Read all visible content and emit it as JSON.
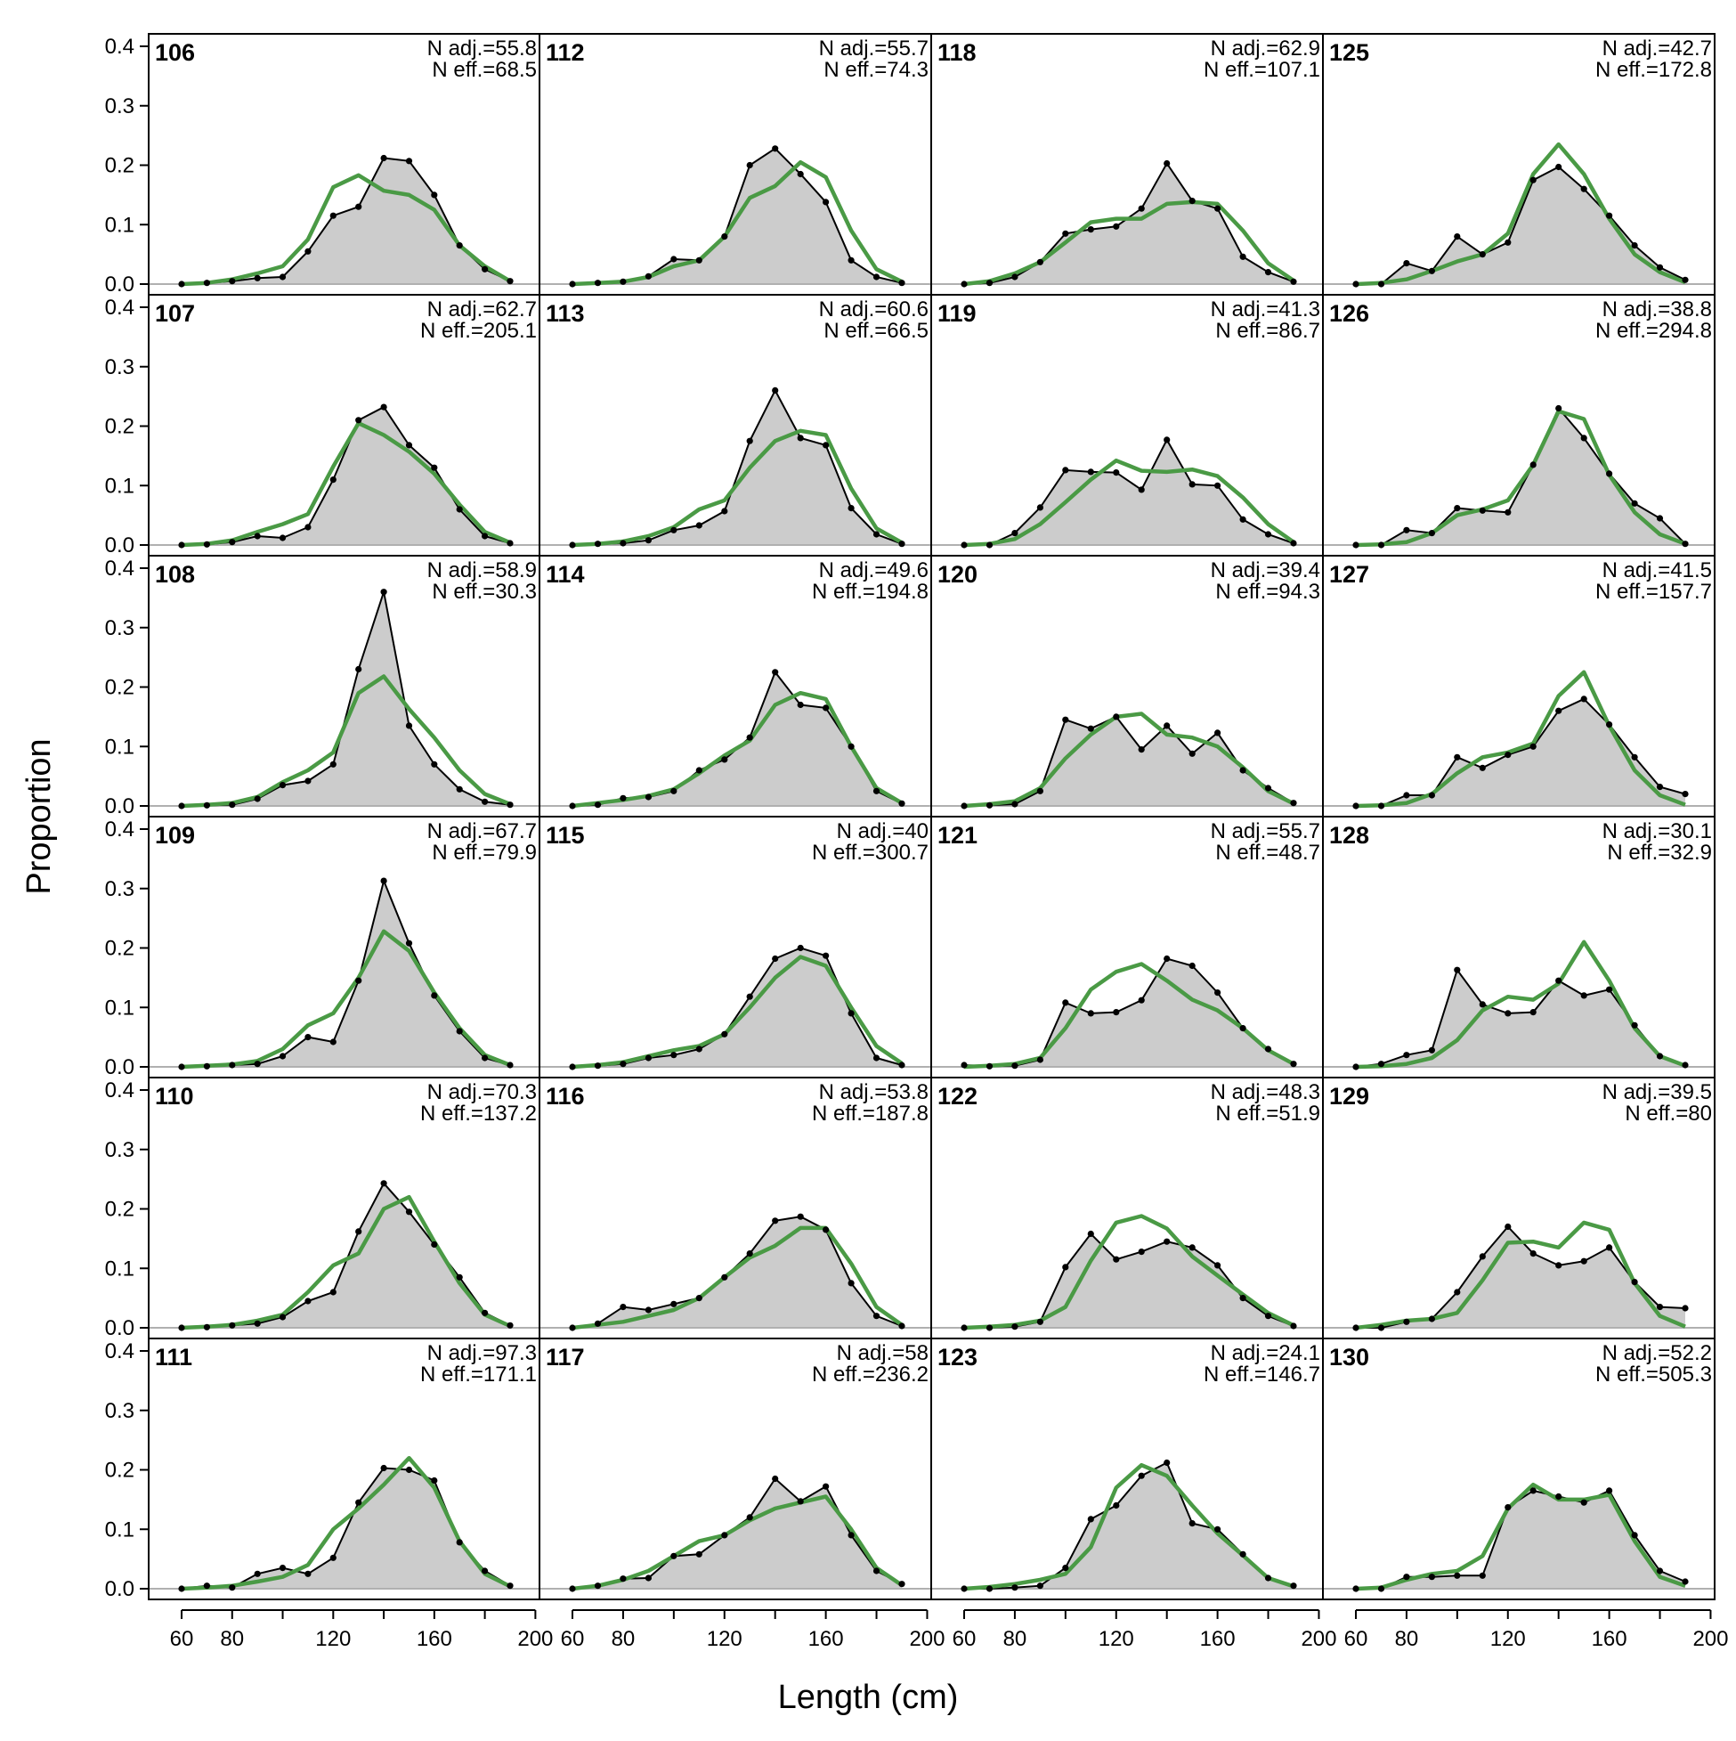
{
  "chart_data": {
    "type": "area",
    "ylabel": "Proportion",
    "xlabel": "Length (cm)",
    "x": [
      60,
      70,
      80,
      90,
      100,
      110,
      120,
      130,
      140,
      150,
      160,
      170,
      180,
      190
    ],
    "xlim": [
      50,
      200
    ],
    "ylim": [
      0,
      0.42
    ],
    "xticks": [
      60,
      80,
      120,
      160,
      200
    ],
    "yticks": [
      0.0,
      0.1,
      0.2,
      0.3,
      0.4
    ],
    "ytick_labels": [
      "0.0",
      "0.1",
      "0.2",
      "0.3",
      "0.4"
    ],
    "colors": {
      "observed_fill": "#cccccc",
      "observed_line": "#000000",
      "expected_line": "#4a9a45",
      "zero_line": "#b0b0b0"
    },
    "panels": [
      {
        "label": "106",
        "n_adj": "N adj.=55.8",
        "n_eff": "N eff.=68.5",
        "obs": [
          0.0,
          0.002,
          0.005,
          0.01,
          0.012,
          0.055,
          0.115,
          0.13,
          0.212,
          0.207,
          0.15,
          0.065,
          0.025,
          0.005
        ],
        "exp": [
          0.0,
          0.002,
          0.008,
          0.018,
          0.03,
          0.075,
          0.163,
          0.183,
          0.157,
          0.15,
          0.125,
          0.065,
          0.03,
          0.005
        ]
      },
      {
        "label": "107",
        "n_adj": "N adj.=62.7",
        "n_eff": "N eff.=205.1",
        "obs": [
          0.0,
          0.001,
          0.005,
          0.015,
          0.012,
          0.03,
          0.11,
          0.21,
          0.232,
          0.168,
          0.13,
          0.06,
          0.015,
          0.003
        ],
        "exp": [
          0.0,
          0.002,
          0.008,
          0.022,
          0.035,
          0.052,
          0.132,
          0.205,
          0.185,
          0.157,
          0.12,
          0.068,
          0.022,
          0.004
        ]
      },
      {
        "label": "108",
        "n_adj": "N adj.=58.9",
        "n_eff": "N eff.=30.3",
        "obs": [
          0.0,
          0.001,
          0.002,
          0.012,
          0.035,
          0.042,
          0.07,
          0.23,
          0.36,
          0.135,
          0.07,
          0.028,
          0.007,
          0.002
        ],
        "exp": [
          0.0,
          0.002,
          0.005,
          0.015,
          0.04,
          0.06,
          0.09,
          0.19,
          0.218,
          0.163,
          0.115,
          0.06,
          0.02,
          0.003
        ]
      },
      {
        "label": "109",
        "n_adj": "N adj.=67.7",
        "n_eff": "N eff.=79.9",
        "obs": [
          0.0,
          0.001,
          0.003,
          0.005,
          0.018,
          0.05,
          0.042,
          0.145,
          0.313,
          0.208,
          0.12,
          0.06,
          0.015,
          0.003
        ],
        "exp": [
          0.0,
          0.002,
          0.004,
          0.01,
          0.03,
          0.07,
          0.09,
          0.15,
          0.228,
          0.195,
          0.125,
          0.065,
          0.02,
          0.003
        ]
      },
      {
        "label": "110",
        "n_adj": "N adj.=70.3",
        "n_eff": "N eff.=137.2",
        "obs": [
          0.0,
          0.001,
          0.004,
          0.007,
          0.018,
          0.045,
          0.06,
          0.162,
          0.243,
          0.195,
          0.14,
          0.085,
          0.025,
          0.004
        ],
        "exp": [
          0.0,
          0.002,
          0.005,
          0.012,
          0.022,
          0.06,
          0.105,
          0.125,
          0.2,
          0.22,
          0.145,
          0.075,
          0.022,
          0.003
        ]
      },
      {
        "label": "111",
        "n_adj": "N adj.=97.3",
        "n_eff": "N eff.=171.1",
        "obs": [
          0.0,
          0.005,
          0.002,
          0.025,
          0.035,
          0.025,
          0.052,
          0.145,
          0.203,
          0.2,
          0.182,
          0.078,
          0.03,
          0.005
        ],
        "exp": [
          0.0,
          0.002,
          0.005,
          0.012,
          0.02,
          0.04,
          0.1,
          0.135,
          0.175,
          0.22,
          0.17,
          0.08,
          0.025,
          0.004
        ]
      },
      {
        "label": "112",
        "n_adj": "N adj.=55.7",
        "n_eff": "N eff.=74.3",
        "obs": [
          0.0,
          0.002,
          0.004,
          0.013,
          0.042,
          0.04,
          0.08,
          0.2,
          0.228,
          0.185,
          0.138,
          0.04,
          0.012,
          0.002
        ],
        "exp": [
          0.0,
          0.002,
          0.004,
          0.012,
          0.03,
          0.04,
          0.08,
          0.145,
          0.165,
          0.205,
          0.18,
          0.09,
          0.025,
          0.004
        ]
      },
      {
        "label": "113",
        "n_adj": "N adj.=60.6",
        "n_eff": "N eff.=66.5",
        "obs": [
          0.0,
          0.002,
          0.003,
          0.008,
          0.025,
          0.033,
          0.057,
          0.175,
          0.26,
          0.18,
          0.168,
          0.062,
          0.018,
          0.002
        ],
        "exp": [
          0.0,
          0.002,
          0.006,
          0.015,
          0.03,
          0.06,
          0.075,
          0.13,
          0.175,
          0.192,
          0.185,
          0.095,
          0.028,
          0.004
        ]
      },
      {
        "label": "114",
        "n_adj": "N adj.=49.6",
        "n_eff": "N eff.=194.8",
        "obs": [
          0.0,
          0.002,
          0.013,
          0.015,
          0.025,
          0.06,
          0.078,
          0.115,
          0.225,
          0.17,
          0.165,
          0.1,
          0.025,
          0.004
        ],
        "exp": [
          0.0,
          0.005,
          0.01,
          0.017,
          0.028,
          0.055,
          0.085,
          0.11,
          0.17,
          0.19,
          0.18,
          0.1,
          0.03,
          0.005
        ]
      },
      {
        "label": "115",
        "n_adj": "N adj.=40",
        "n_eff": "N eff.=300.7",
        "obs": [
          0.0,
          0.002,
          0.005,
          0.015,
          0.02,
          0.03,
          0.055,
          0.118,
          0.182,
          0.2,
          0.187,
          0.09,
          0.015,
          0.003
        ],
        "exp": [
          0.0,
          0.003,
          0.008,
          0.018,
          0.028,
          0.035,
          0.055,
          0.1,
          0.15,
          0.185,
          0.17,
          0.1,
          0.035,
          0.006
        ]
      },
      {
        "label": "116",
        "n_adj": "N adj.=53.8",
        "n_eff": "N eff.=187.8",
        "obs": [
          0.0,
          0.007,
          0.035,
          0.03,
          0.04,
          0.05,
          0.085,
          0.125,
          0.18,
          0.187,
          0.165,
          0.075,
          0.02,
          0.003
        ],
        "exp": [
          0.0,
          0.005,
          0.01,
          0.02,
          0.03,
          0.05,
          0.085,
          0.118,
          0.138,
          0.168,
          0.168,
          0.108,
          0.035,
          0.005
        ]
      },
      {
        "label": "117",
        "n_adj": "N adj.=58",
        "n_eff": "N eff.=236.2",
        "obs": [
          0.0,
          0.005,
          0.017,
          0.018,
          0.055,
          0.058,
          0.09,
          0.12,
          0.185,
          0.147,
          0.172,
          0.09,
          0.03,
          0.008
        ],
        "exp": [
          0.0,
          0.005,
          0.015,
          0.03,
          0.055,
          0.08,
          0.09,
          0.115,
          0.135,
          0.145,
          0.155,
          0.1,
          0.035,
          0.006
        ]
      },
      {
        "label": "118",
        "n_adj": "N adj.=62.9",
        "n_eff": "N eff.=107.1",
        "obs": [
          0.0,
          0.002,
          0.012,
          0.037,
          0.085,
          0.092,
          0.097,
          0.127,
          0.203,
          0.14,
          0.127,
          0.046,
          0.02,
          0.004
        ],
        "exp": [
          0.0,
          0.005,
          0.018,
          0.037,
          0.07,
          0.104,
          0.11,
          0.11,
          0.135,
          0.138,
          0.135,
          0.09,
          0.035,
          0.006
        ]
      },
      {
        "label": "119",
        "n_adj": "N adj.=41.3",
        "n_eff": "N eff.=86.7",
        "obs": [
          0.0,
          0.0,
          0.02,
          0.063,
          0.126,
          0.123,
          0.122,
          0.093,
          0.177,
          0.102,
          0.1,
          0.043,
          0.018,
          0.003
        ],
        "exp": [
          0.0,
          0.002,
          0.01,
          0.035,
          0.072,
          0.11,
          0.142,
          0.125,
          0.123,
          0.127,
          0.116,
          0.08,
          0.035,
          0.005
        ]
      },
      {
        "label": "120",
        "n_adj": "N adj.=39.4",
        "n_eff": "N eff.=94.3",
        "obs": [
          0.0,
          0.001,
          0.003,
          0.025,
          0.145,
          0.13,
          0.15,
          0.095,
          0.135,
          0.088,
          0.123,
          0.06,
          0.03,
          0.005
        ],
        "exp": [
          0.0,
          0.003,
          0.008,
          0.03,
          0.08,
          0.12,
          0.15,
          0.155,
          0.12,
          0.115,
          0.1,
          0.065,
          0.025,
          0.004
        ]
      },
      {
        "label": "121",
        "n_adj": "N adj.=55.7",
        "n_eff": "N eff.=48.7",
        "obs": [
          0.003,
          0.001,
          0.002,
          0.012,
          0.108,
          0.09,
          0.092,
          0.112,
          0.182,
          0.17,
          0.125,
          0.065,
          0.03,
          0.005
        ],
        "exp": [
          0.0,
          0.002,
          0.005,
          0.015,
          0.065,
          0.13,
          0.16,
          0.173,
          0.145,
          0.113,
          0.095,
          0.065,
          0.028,
          0.005
        ]
      },
      {
        "label": "122",
        "n_adj": "N adj.=48.3",
        "n_eff": "N eff.=51.9",
        "obs": [
          0.0,
          0.0,
          0.002,
          0.01,
          0.102,
          0.158,
          0.115,
          0.128,
          0.145,
          0.135,
          0.105,
          0.05,
          0.02,
          0.003
        ],
        "exp": [
          0.0,
          0.002,
          0.005,
          0.012,
          0.035,
          0.113,
          0.177,
          0.188,
          0.167,
          0.12,
          0.088,
          0.056,
          0.025,
          0.004
        ]
      },
      {
        "label": "123",
        "n_adj": "N adj.=24.1",
        "n_eff": "N eff.=146.7",
        "obs": [
          0.0,
          0.0,
          0.002,
          0.005,
          0.035,
          0.117,
          0.14,
          0.19,
          0.212,
          0.11,
          0.1,
          0.058,
          0.018,
          0.005
        ],
        "exp": [
          0.0,
          0.003,
          0.008,
          0.015,
          0.025,
          0.07,
          0.17,
          0.208,
          0.19,
          0.14,
          0.093,
          0.056,
          0.018,
          0.004
        ]
      },
      {
        "label": "125",
        "n_adj": "N adj.=42.7",
        "n_eff": "N eff.=172.8",
        "obs": [
          0.0,
          0.0,
          0.035,
          0.022,
          0.08,
          0.05,
          0.07,
          0.175,
          0.197,
          0.16,
          0.115,
          0.065,
          0.028,
          0.007
        ],
        "exp": [
          0.0,
          0.002,
          0.008,
          0.022,
          0.038,
          0.05,
          0.085,
          0.185,
          0.235,
          0.185,
          0.11,
          0.05,
          0.02,
          0.003
        ]
      },
      {
        "label": "126",
        "n_adj": "N adj.=38.8",
        "n_eff": "N eff.=294.8",
        "obs": [
          0.0,
          0.0,
          0.025,
          0.02,
          0.062,
          0.058,
          0.055,
          0.135,
          0.23,
          0.18,
          0.12,
          0.07,
          0.045,
          0.002
        ],
        "exp": [
          0.0,
          0.001,
          0.005,
          0.02,
          0.05,
          0.06,
          0.075,
          0.135,
          0.225,
          0.212,
          0.118,
          0.055,
          0.018,
          0.002
        ]
      },
      {
        "label": "127",
        "n_adj": "N adj.=41.5",
        "n_eff": "N eff.=157.7",
        "obs": [
          0.0,
          0.0,
          0.018,
          0.018,
          0.082,
          0.064,
          0.086,
          0.1,
          0.16,
          0.18,
          0.137,
          0.082,
          0.032,
          0.02
        ],
        "exp": [
          0.0,
          0.001,
          0.005,
          0.02,
          0.055,
          0.082,
          0.09,
          0.105,
          0.185,
          0.225,
          0.135,
          0.06,
          0.018,
          0.002
        ]
      },
      {
        "label": "128",
        "n_adj": "N adj.=30.1",
        "n_eff": "N eff.=32.9",
        "obs": [
          0.0,
          0.005,
          0.02,
          0.028,
          0.163,
          0.105,
          0.09,
          0.092,
          0.145,
          0.12,
          0.13,
          0.07,
          0.018,
          0.003
        ],
        "exp": [
          0.0,
          0.001,
          0.005,
          0.015,
          0.045,
          0.095,
          0.118,
          0.113,
          0.14,
          0.21,
          0.145,
          0.065,
          0.018,
          0.002
        ]
      },
      {
        "label": "129",
        "n_adj": "N adj.=39.5",
        "n_eff": "N eff.=80",
        "obs": [
          0.0,
          0.0,
          0.01,
          0.015,
          0.06,
          0.12,
          0.17,
          0.125,
          0.105,
          0.112,
          0.135,
          0.077,
          0.035,
          0.033
        ],
        "exp": [
          0.0,
          0.005,
          0.012,
          0.015,
          0.025,
          0.08,
          0.143,
          0.145,
          0.135,
          0.177,
          0.165,
          0.075,
          0.02,
          0.002
        ]
      },
      {
        "label": "130",
        "n_adj": "N adj.=52.2",
        "n_eff": "N eff.=505.3",
        "obs": [
          0.0,
          0.0,
          0.02,
          0.02,
          0.022,
          0.022,
          0.137,
          0.165,
          0.155,
          0.145,
          0.165,
          0.09,
          0.03,
          0.012
        ],
        "exp": [
          0.0,
          0.002,
          0.015,
          0.025,
          0.03,
          0.055,
          0.135,
          0.175,
          0.15,
          0.15,
          0.158,
          0.08,
          0.02,
          0.005
        ]
      }
    ]
  }
}
